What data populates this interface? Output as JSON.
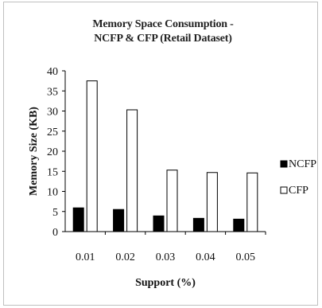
{
  "chart_data": {
    "type": "bar",
    "title_line1": "Memory Space Consumption -",
    "title_line2": "NCFP & CFP  (Retail Dataset)",
    "xlabel": "Support (%)",
    "ylabel": "Memory Size (KB)",
    "categories": [
      "0.01",
      "0.02",
      "0.03",
      "0.04",
      "0.05"
    ],
    "ylim": [
      0,
      40
    ],
    "yticks": [
      "0",
      "5",
      "10",
      "15",
      "20",
      "25",
      "30",
      "35",
      "40"
    ],
    "legend_position": "right",
    "grid": false,
    "series": [
      {
        "name": "NCFP",
        "color": "#000000",
        "values": [
          5.9,
          5.5,
          3.9,
          3.3,
          3.1
        ]
      },
      {
        "name": "CFP",
        "color": "#ffffff",
        "values": [
          37.5,
          30.3,
          15.3,
          14.7,
          14.6
        ]
      }
    ]
  }
}
